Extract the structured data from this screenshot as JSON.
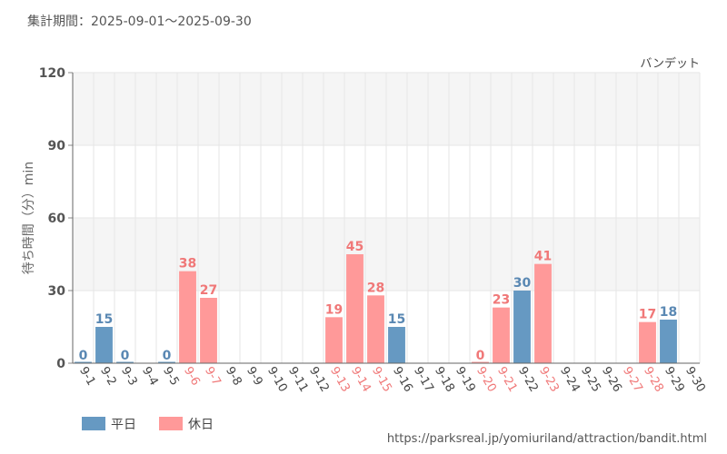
{
  "chart_data": {
    "type": "bar",
    "period_label": "集計期間：2025-09-01～2025-09-30",
    "attraction": "バンデット",
    "ylabel": "待ち時間（分）min",
    "ylim": [
      0,
      120
    ],
    "yticks": [
      0,
      30,
      60,
      90,
      120
    ],
    "categories": [
      "9-1",
      "9-2",
      "9-3",
      "9-4",
      "9-5",
      "9-6",
      "9-7",
      "9-8",
      "9-9",
      "9-10",
      "9-11",
      "9-12",
      "9-13",
      "9-14",
      "9-15",
      "9-16",
      "9-17",
      "9-18",
      "9-19",
      "9-20",
      "9-21",
      "9-22",
      "9-23",
      "9-24",
      "9-25",
      "9-26",
      "9-27",
      "9-28",
      "9-29",
      "9-30"
    ],
    "values": [
      0,
      15,
      0,
      null,
      0,
      38,
      27,
      null,
      null,
      null,
      null,
      null,
      19,
      45,
      28,
      15,
      null,
      null,
      null,
      0,
      23,
      30,
      41,
      null,
      null,
      null,
      null,
      17,
      18,
      null
    ],
    "day_type": [
      "weekday",
      "weekday",
      "weekday",
      "weekday",
      "weekday",
      "holiday",
      "holiday",
      "weekday",
      "weekday",
      "weekday",
      "weekday",
      "weekday",
      "holiday",
      "holiday",
      "holiday",
      "weekday",
      "weekday",
      "weekday",
      "weekday",
      "holiday",
      "holiday",
      "weekday",
      "holiday",
      "weekday",
      "weekday",
      "weekday",
      "holiday",
      "holiday",
      "weekday",
      "weekday"
    ],
    "legend": [
      {
        "key": "weekday",
        "label": "平日",
        "color": "#6699c2"
      },
      {
        "key": "holiday",
        "label": "休日",
        "color": "#ff9999"
      }
    ],
    "label_colors": {
      "weekday": "#5a88b3",
      "holiday": "#f07878",
      "axis": "#444444"
    },
    "source_url": "https://parksreal.jp/yomiuriland/attraction/bandit.html"
  }
}
